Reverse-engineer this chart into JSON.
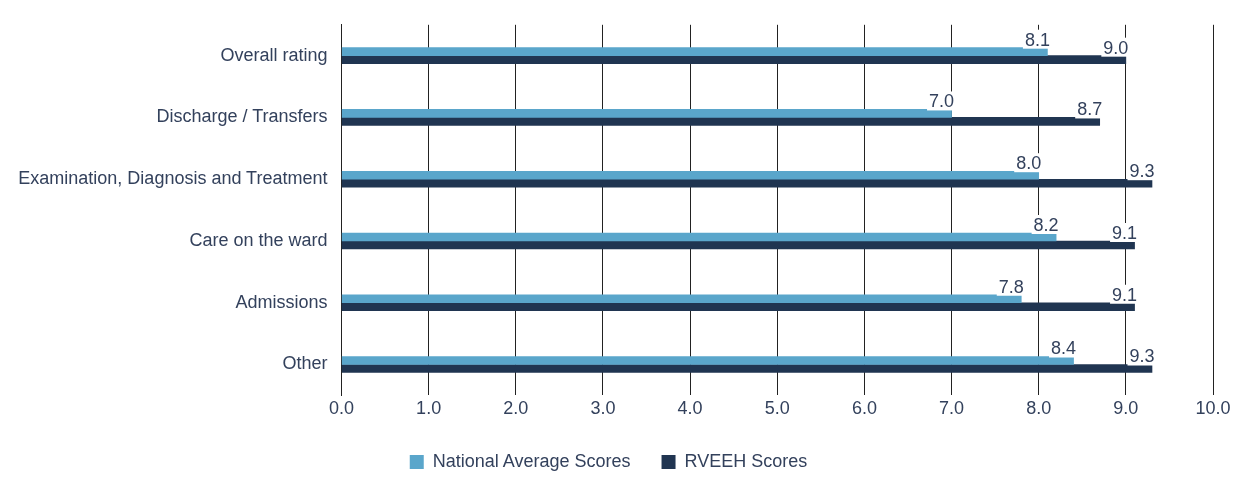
{
  "chart_data": {
    "type": "bar",
    "orientation": "horizontal",
    "categories": [
      "Overall rating",
      "Discharge / Transfers",
      "Examination, Diagnosis and Treatment",
      "Care on the ward",
      "Admissions",
      "Other"
    ],
    "series": [
      {
        "name": "National Average Scores",
        "color": "#5aa6cb",
        "values": [
          8.1,
          7.0,
          8.0,
          8.2,
          7.8,
          8.4
        ],
        "value_labels": [
          "8.1",
          "7.0",
          "8.0",
          "8.2",
          "7.8",
          "8.4"
        ]
      },
      {
        "name": "RVEEH Scores",
        "color": "#203551",
        "values": [
          9.0,
          8.7,
          9.3,
          9.1,
          9.1,
          9.3
        ],
        "value_labels": [
          "9.0",
          "8.7",
          "9.3",
          "9.1",
          "9.1",
          "9.3"
        ]
      }
    ],
    "xlim": [
      0,
      10
    ],
    "xticks": [
      {
        "value": 0,
        "label": "0.0"
      },
      {
        "value": 1,
        "label": "1.0"
      },
      {
        "value": 2,
        "label": "2.0"
      },
      {
        "value": 3,
        "label": "3.0"
      },
      {
        "value": 4,
        "label": "4.0"
      },
      {
        "value": 5,
        "label": "5.0"
      },
      {
        "value": 6,
        "label": "6.0"
      },
      {
        "value": 7,
        "label": "7.0"
      },
      {
        "value": 8,
        "label": "8.0"
      },
      {
        "value": 9,
        "label": "9.0"
      },
      {
        "value": 10,
        "label": "10.0"
      }
    ],
    "grid": "x",
    "legend": "bottom"
  }
}
